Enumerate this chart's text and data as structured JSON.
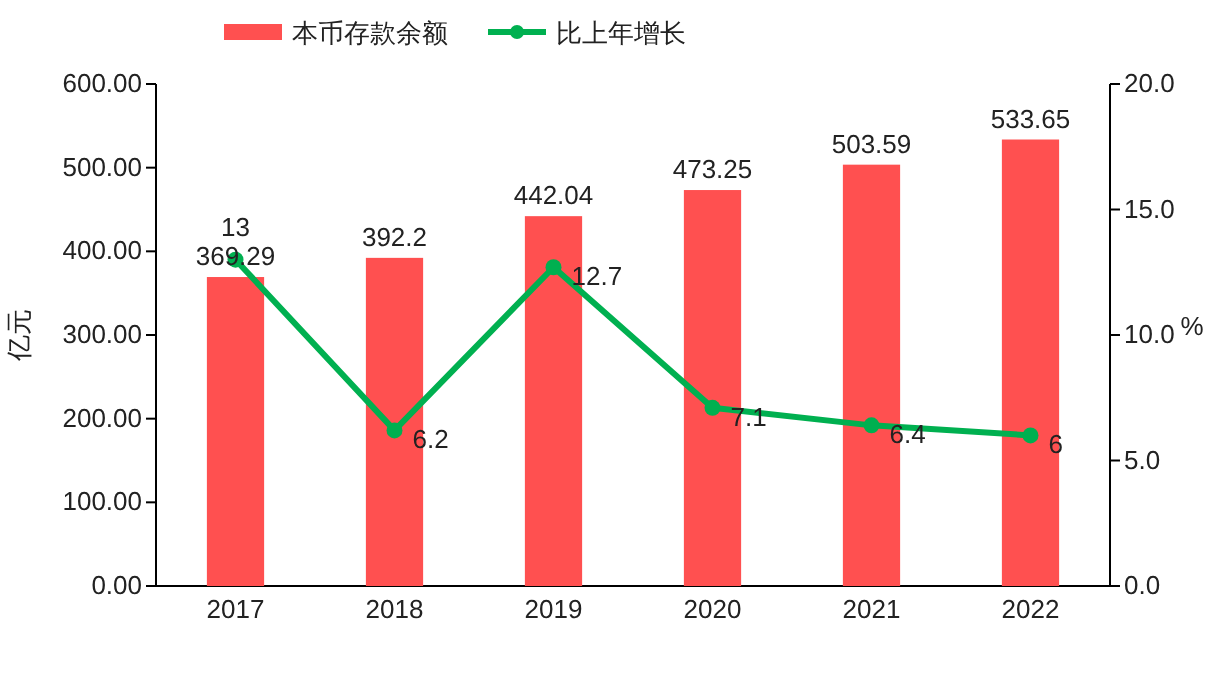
{
  "chart_data": {
    "type": "bar",
    "categories": [
      "2017",
      "2018",
      "2019",
      "2020",
      "2021",
      "2022"
    ],
    "series": [
      {
        "name": "本币存款余额",
        "color": "#ff5050",
        "values": [
          369.29,
          392.2,
          442.04,
          473.25,
          503.59,
          533.65
        ]
      },
      {
        "name": "比上年增长",
        "type": "line",
        "axis": "y2",
        "color": "#00b050",
        "marker": "circle",
        "values": [
          13,
          6.2,
          12.7,
          7.1,
          6.4,
          6
        ]
      }
    ],
    "ylabel": "亿元",
    "y2label": "%",
    "ylim": [
      0,
      600
    ],
    "yticks": [
      {
        "value": 0,
        "label": "0.00"
      },
      {
        "value": 100,
        "label": "100.00"
      },
      {
        "value": 200,
        "label": "200.00"
      },
      {
        "value": 300,
        "label": "300.00"
      },
      {
        "value": 400,
        "label": "400.00"
      },
      {
        "value": 500,
        "label": "500.00"
      },
      {
        "value": 600,
        "label": "600.00"
      }
    ],
    "y2lim": [
      0,
      20
    ],
    "y2ticks": [
      {
        "value": 0,
        "label": "0.0"
      },
      {
        "value": 5,
        "label": "5.0"
      },
      {
        "value": 10,
        "label": "10.0"
      },
      {
        "value": 15,
        "label": "15.0"
      },
      {
        "value": 20,
        "label": "20.0"
      }
    ],
    "data_labels": true,
    "legend": "top",
    "grid": false
  }
}
